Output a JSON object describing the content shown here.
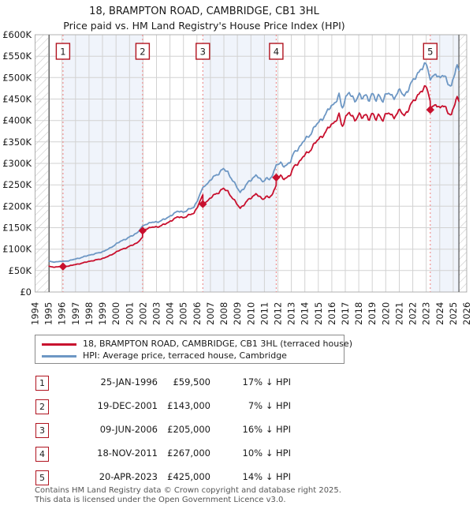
{
  "title": {
    "line1": "18, BRAMPTON ROAD, CAMBRIDGE, CB1 3HL",
    "line2": "Price paid vs. HM Land Registry's House Price Index (HPI)"
  },
  "legend": {
    "rows": [
      {
        "label": "18, BRAMPTON ROAD, CAMBRIDGE, CB1 3HL (terraced house)",
        "color": "#c8102e"
      },
      {
        "label": "HPI: Average price, terraced house, Cambridge",
        "color": "#6d97c4"
      }
    ]
  },
  "sales_table": {
    "rows": [
      {
        "num": "1",
        "date": "25-JAN-1996",
        "price": "£59,500",
        "pct": "17% ↓ HPI"
      },
      {
        "num": "2",
        "date": "19-DEC-2001",
        "price": "£143,000",
        "pct": "7% ↓ HPI"
      },
      {
        "num": "3",
        "date": "09-JUN-2006",
        "price": "£205,000",
        "pct": "16% ↓ HPI"
      },
      {
        "num": "4",
        "date": "18-NOV-2011",
        "price": "£267,000",
        "pct": "10% ↓ HPI"
      },
      {
        "num": "5",
        "date": "20-APR-2023",
        "price": "£425,000",
        "pct": "14% ↓ HPI"
      }
    ]
  },
  "footer": {
    "line1": "Contains HM Land Registry data © Crown copyright and database right 2025.",
    "line2": "This data is licensed under the Open Government Licence v3.0."
  },
  "colors": {
    "property_line": "#c8102e",
    "hpi_line": "#6d97c4",
    "sale_dashed_line": "#ee8888",
    "marker_box_border": "#b0131f",
    "grid": "#d2d2d2",
    "plot_border": "#b0b0b0",
    "data_edge_line": "#555555",
    "hatch": "#c9c9c9",
    "band_fill": "#f0f4fb",
    "axis_text": "#1a1a1a"
  },
  "chart_data": {
    "type": "line",
    "x_axis": {
      "min": 1994,
      "max": 2026,
      "tick_labels": [
        "1994",
        "1995",
        "1996",
        "1997",
        "1998",
        "1999",
        "2000",
        "2001",
        "2002",
        "2003",
        "2004",
        "2005",
        "2006",
        "2007",
        "2008",
        "2009",
        "2010",
        "2011",
        "2012",
        "2013",
        "2014",
        "2015",
        "2016",
        "2017",
        "2018",
        "2019",
        "2020",
        "2021",
        "2022",
        "2023",
        "2024",
        "2025",
        "2026"
      ]
    },
    "y_axis": {
      "min": 0,
      "max": 600000,
      "tick_step": 50000,
      "tick_labels": [
        "£0",
        "£50K",
        "£100K",
        "£150K",
        "£200K",
        "£250K",
        "£300K",
        "£350K",
        "£400K",
        "£450K",
        "£500K",
        "£550K",
        "£600K"
      ]
    },
    "data_start_year": 1995.04,
    "data_end_year": 2025.42,
    "hpi_series": {
      "name": "HPI: Average price, terraced house, Cambridge",
      "units": "GBP thousands",
      "anchors_year_value": [
        [
          1995.0,
          72
        ],
        [
          1995.25,
          70
        ],
        [
          1995.6,
          70.5
        ],
        [
          1995.9,
          71.5
        ],
        [
          1996.07,
          71.5
        ],
        [
          1996.5,
          73
        ],
        [
          1997.0,
          77
        ],
        [
          1997.5,
          81
        ],
        [
          1998.0,
          86
        ],
        [
          1998.5,
          89.5
        ],
        [
          1999.0,
          94
        ],
        [
          1999.5,
          101
        ],
        [
          2000.0,
          112
        ],
        [
          2000.4,
          119
        ],
        [
          2000.8,
          125
        ],
        [
          2001.2,
          131
        ],
        [
          2001.6,
          139
        ],
        [
          2001.97,
          153.8
        ],
        [
          2002.3,
          159
        ],
        [
          2002.6,
          163
        ],
        [
          2003.0,
          162
        ],
        [
          2003.4,
          168
        ],
        [
          2003.8,
          172
        ],
        [
          2004.2,
          182
        ],
        [
          2004.6,
          188
        ],
        [
          2005.0,
          187
        ],
        [
          2005.4,
          192
        ],
        [
          2005.8,
          199
        ],
        [
          2006.1,
          218
        ],
        [
          2006.44,
          244
        ],
        [
          2006.8,
          254
        ],
        [
          2007.2,
          267
        ],
        [
          2007.6,
          277
        ],
        [
          2007.95,
          287
        ],
        [
          2008.3,
          279
        ],
        [
          2008.6,
          263
        ],
        [
          2008.9,
          247
        ],
        [
          2009.2,
          233
        ],
        [
          2009.5,
          243
        ],
        [
          2009.8,
          255
        ],
        [
          2010.1,
          265
        ],
        [
          2010.4,
          273
        ],
        [
          2010.65,
          263
        ],
        [
          2010.9,
          257
        ],
        [
          2011.1,
          267
        ],
        [
          2011.35,
          261
        ],
        [
          2011.6,
          271
        ],
        [
          2011.88,
          296.7
        ],
        [
          2012.2,
          300
        ],
        [
          2012.45,
          292
        ],
        [
          2012.7,
          298
        ],
        [
          2012.95,
          306
        ],
        [
          2013.2,
          324
        ],
        [
          2013.5,
          334
        ],
        [
          2013.9,
          352
        ],
        [
          2014.3,
          363
        ],
        [
          2014.7,
          384
        ],
        [
          2015.1,
          398
        ],
        [
          2015.5,
          413
        ],
        [
          2015.9,
          431
        ],
        [
          2016.2,
          441
        ],
        [
          2016.55,
          459
        ],
        [
          2016.75,
          425
        ],
        [
          2017.0,
          452
        ],
        [
          2017.25,
          468
        ],
        [
          2017.5,
          452
        ],
        [
          2017.75,
          445
        ],
        [
          2018.0,
          464
        ],
        [
          2018.25,
          450
        ],
        [
          2018.5,
          459
        ],
        [
          2018.75,
          449
        ],
        [
          2019.0,
          464
        ],
        [
          2019.25,
          445
        ],
        [
          2019.5,
          461
        ],
        [
          2019.75,
          446
        ],
        [
          2020.0,
          458
        ],
        [
          2020.3,
          465
        ],
        [
          2020.6,
          452
        ],
        [
          2020.9,
          464
        ],
        [
          2021.1,
          471
        ],
        [
          2021.35,
          459
        ],
        [
          2021.6,
          466
        ],
        [
          2021.9,
          487
        ],
        [
          2022.2,
          504
        ],
        [
          2022.5,
          513
        ],
        [
          2022.75,
          523
        ],
        [
          2023.0,
          536
        ],
        [
          2023.15,
          517
        ],
        [
          2023.3,
          494.2
        ],
        [
          2023.5,
          503
        ],
        [
          2023.7,
          509
        ],
        [
          2023.9,
          500
        ],
        [
          2024.1,
          507
        ],
        [
          2024.3,
          501
        ],
        [
          2024.5,
          495
        ],
        [
          2024.7,
          484
        ],
        [
          2024.85,
          480
        ],
        [
          2025.0,
          497
        ],
        [
          2025.15,
          515
        ],
        [
          2025.3,
          525
        ],
        [
          2025.42,
          516
        ]
      ]
    },
    "property_series": {
      "name": "18, BRAMPTON ROAD, CAMBRIDGE, CB1 3HL (terraced house)",
      "derivation": "hpi_scaled_between_sales",
      "segment_ratios_vs_hpi": [
        0.832,
        0.93,
        0.84,
        0.9,
        0.86
      ]
    },
    "sales": [
      {
        "num": 1,
        "date": "25-JAN-1996",
        "year": 1996.07,
        "price_gbp": 59500,
        "pct_below_hpi": 17
      },
      {
        "num": 2,
        "date": "19-DEC-2001",
        "year": 2001.97,
        "price_gbp": 143000,
        "pct_below_hpi": 7
      },
      {
        "num": 3,
        "date": "09-JUN-2006",
        "year": 2006.44,
        "price_gbp": 205000,
        "pct_below_hpi": 16
      },
      {
        "num": 4,
        "date": "18-NOV-2011",
        "year": 2011.88,
        "price_gbp": 267000,
        "pct_below_hpi": 10
      },
      {
        "num": 5,
        "date": "20-APR-2023",
        "year": 2023.3,
        "price_gbp": 425000,
        "pct_below_hpi": 14
      }
    ],
    "shaded_ownership_periods": [
      [
        1996.07,
        2001.97
      ],
      [
        2006.44,
        2011.88
      ],
      [
        2023.3,
        2025.42
      ]
    ],
    "grid": true,
    "legend_position": "below"
  }
}
